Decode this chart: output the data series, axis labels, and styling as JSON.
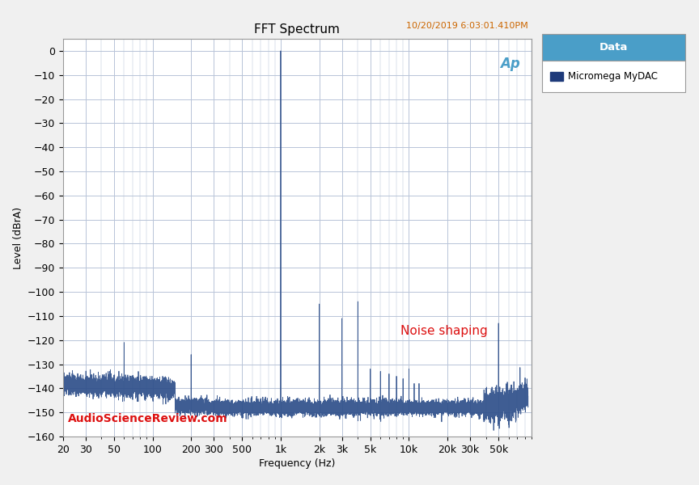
{
  "title": "FFT Spectrum",
  "timestamp": "10/20/2019 6:03:01.410PM",
  "xlabel": "Frequency (Hz)",
  "ylabel": "Level (dBrA)",
  "xlim_log": [
    20,
    90000
  ],
  "ylim": [
    -160,
    5
  ],
  "yticks": [
    0,
    -10,
    -20,
    -30,
    -40,
    -50,
    -60,
    -70,
    -80,
    -90,
    -100,
    -110,
    -120,
    -130,
    -140,
    -150,
    -160
  ],
  "xtick_positions": [
    20,
    30,
    50,
    100,
    200,
    300,
    500,
    1000,
    2000,
    3000,
    5000,
    10000,
    20000,
    30000,
    50000
  ],
  "xtick_labels": [
    "20",
    "30",
    "50",
    "100",
    "200",
    "300",
    "500",
    "1k",
    "2k",
    "3k",
    "5k",
    "10k",
    "20k",
    "30k",
    "50k"
  ],
  "line_color": "#2e4f8a",
  "bg_color": "#f0f0f0",
  "plot_bg_color": "#ffffff",
  "grid_color": "#b8c4d8",
  "legend_header_bg": "#4a9ec8",
  "legend_header_text": "#ffffff",
  "legend_label": "Micromega MyDAC",
  "legend_marker_color": "#1e3a7a",
  "watermark_text": "AudioScienceReview.com",
  "watermark_color": "#dd1111",
  "noise_shaping_text": "Noise shaping",
  "noise_shaping_color": "#dd1111",
  "timestamp_color": "#cc6600",
  "title_fontsize": 11,
  "axis_fontsize": 9,
  "tick_fontsize": 9
}
